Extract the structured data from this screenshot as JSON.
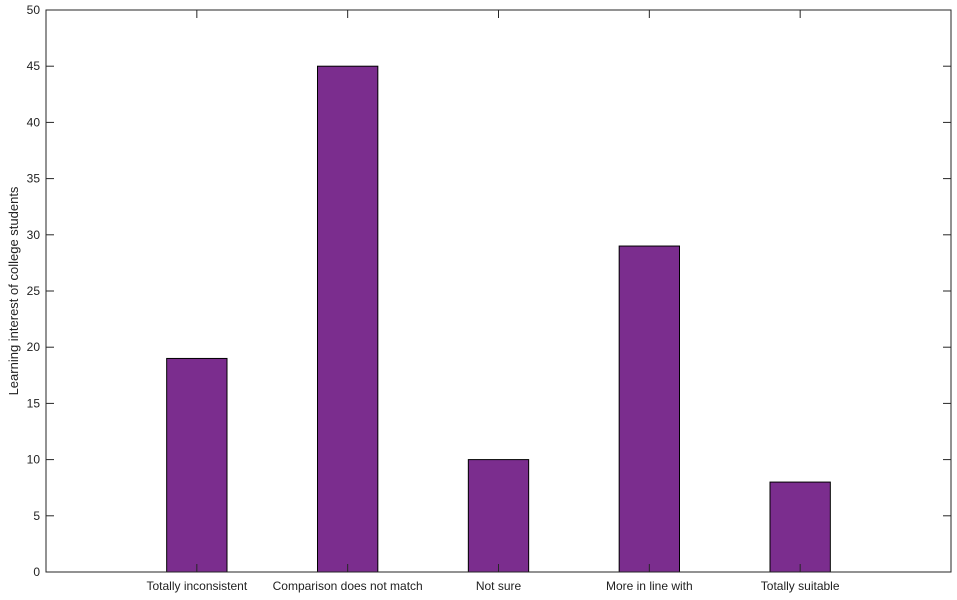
{
  "chart_data": {
    "type": "bar",
    "categories": [
      "Totally inconsistent",
      "Comparison does not match",
      "Not sure",
      "More in line with",
      "Totally suitable"
    ],
    "values": [
      19,
      45,
      10,
      29,
      8
    ],
    "title": "",
    "xlabel": "",
    "ylabel": "Learning interest of college students",
    "ylim": [
      0,
      50
    ],
    "yticks": [
      0,
      5,
      10,
      15,
      20,
      25,
      30,
      35,
      40,
      45,
      50
    ],
    "grid": false,
    "legend": "none",
    "bar_color": "#7B2D8E"
  }
}
